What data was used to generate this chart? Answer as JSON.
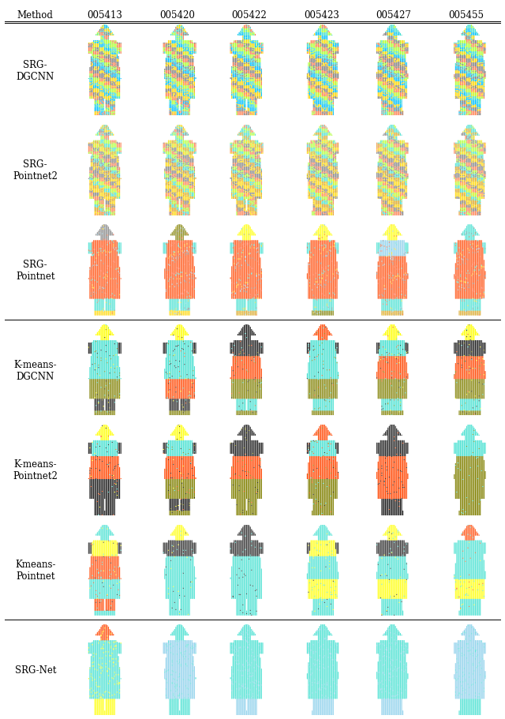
{
  "columns": [
    "Method",
    "005413",
    "005420",
    "005422",
    "005423",
    "005427",
    "005455"
  ],
  "rows": [
    "SRG-\nDGCNN",
    "SRG-\nPointnet2",
    "SRG-\nPointnet",
    "K-means-\nDGCNN",
    "K-means-\nPointnet2",
    "Kmeans-\nPointnet",
    "SRG-Net"
  ],
  "fig_width": 6.4,
  "fig_height": 9.12,
  "background": "#ffffff",
  "row_palettes": [
    [
      "#40E0D0",
      "#ADFF2F",
      "#FF7F50",
      "#808080",
      "#FFD700",
      "#00BFFF"
    ],
    [
      "#40E0D0",
      "#ADFF2F",
      "#FF7F50",
      "#808080",
      "#FFD700",
      "#DAA520"
    ],
    [
      "#FF4500",
      "#FF6347",
      "#40E0D0",
      "#FFD700",
      "#87CEEB",
      "#808080"
    ],
    [
      "#FFFF00",
      "#40E0D0",
      "#1C1C1C",
      "#FF4500",
      "#808000",
      "#FF4500"
    ],
    [
      "#FFFF00",
      "#40E0D0",
      "#1C1C1C",
      "#FF4500",
      "#1C1C1C",
      "#40E0D0"
    ],
    [
      "#40E0D0",
      "#FFFF00",
      "#1C1C1C",
      "#40E0D0",
      "#FFFF00",
      "#FF4500"
    ],
    [
      "#40E0D0",
      "#FFFF00",
      "#40E0D0",
      "#40E0D0",
      "#40E0D0",
      "#87CEEB"
    ]
  ],
  "separator_after_rows": [
    2,
    5
  ]
}
